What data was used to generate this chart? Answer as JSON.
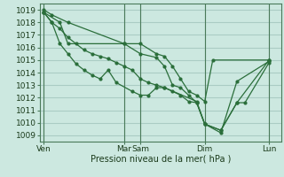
{
  "bg_color": "#cce8e0",
  "grid_color": "#aaccc4",
  "line_color": "#2a6e3a",
  "ylabel": "Pression niveau de la mer( hPa )",
  "ylim": [
    1008.5,
    1019.5
  ],
  "yticks": [
    1009,
    1010,
    1011,
    1012,
    1013,
    1014,
    1015,
    1016,
    1017,
    1018,
    1019
  ],
  "xtick_labels": [
    "Ven",
    "Mar",
    "Sam",
    "Dim",
    "Lun"
  ],
  "xtick_pos": [
    0,
    10,
    12,
    20,
    28
  ],
  "xlim": [
    -0.5,
    29.5
  ],
  "vlines": [
    0,
    10,
    12,
    20,
    28
  ],
  "lines": [
    [
      0,
      1019.0,
      1,
      1018.6,
      3,
      1018.0,
      10,
      1016.3,
      12,
      1016.3,
      14,
      1015.5,
      15,
      1015.3,
      16,
      1014.5,
      17,
      1013.5,
      18,
      1012.5,
      19,
      1012.2,
      20,
      1011.7,
      21,
      1015.0,
      28,
      1015.0
    ],
    [
      0,
      1018.8,
      2,
      1018.0,
      3,
      1016.3,
      10,
      1016.3,
      12,
      1015.5,
      14,
      1015.2,
      15,
      1014.5,
      16,
      1013.0,
      17,
      1012.8,
      18,
      1012.2,
      19,
      1011.6,
      20,
      1009.9,
      22,
      1009.4,
      24,
      1011.6,
      25,
      1011.6,
      28,
      1014.8
    ],
    [
      0,
      1018.8,
      1,
      1018.0,
      2,
      1016.3,
      3,
      1015.5,
      4,
      1014.7,
      5,
      1014.2,
      6,
      1013.8,
      7,
      1013.5,
      8,
      1014.2,
      9,
      1013.2,
      11,
      1012.5,
      12,
      1012.2,
      13,
      1012.2,
      14,
      1012.8,
      15,
      1012.8,
      19,
      1011.7,
      20,
      1009.9,
      22,
      1009.2,
      24,
      1013.3,
      28,
      1014.9
    ],
    [
      0,
      1018.8,
      1,
      1018.0,
      2,
      1017.5,
      3,
      1016.8,
      4,
      1016.3,
      5,
      1015.8,
      6,
      1015.5,
      7,
      1015.3,
      8,
      1015.1,
      9,
      1014.8,
      10,
      1014.5,
      11,
      1014.2,
      12,
      1013.5,
      13,
      1013.2,
      14,
      1013.0,
      15,
      1012.8,
      16,
      1012.5,
      17,
      1012.2,
      18,
      1011.7,
      19,
      1011.6,
      20,
      1009.9,
      22,
      1009.4,
      24,
      1011.6,
      28,
      1015.0
    ]
  ]
}
